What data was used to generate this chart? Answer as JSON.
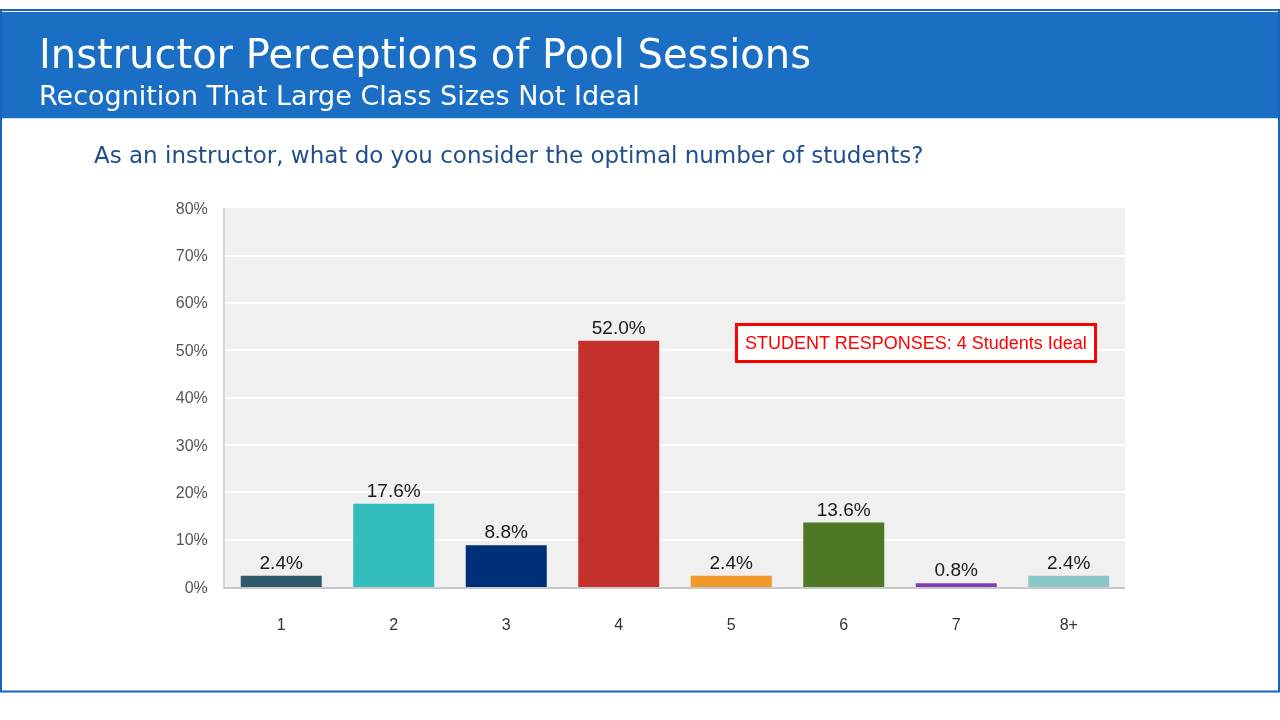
{
  "chart_data": {
    "type": "bar",
    "title": "Instructor Perceptions of Pool Sessions",
    "subtitle": "Recognition That Large Class Sizes Not Ideal",
    "annotations": [
      "As an instructor, what do you consider the optimal number of students?",
      "STUDENT RESPONSES: 4 Students Ideal"
    ],
    "categories": [
      "1",
      "2",
      "3",
      "4",
      "5",
      "6",
      "7",
      "8+"
    ],
    "values": [
      2.4,
      17.6,
      8.8,
      52.0,
      2.4,
      13.6,
      0.8,
      2.4
    ],
    "colors": [
      "#2f5a6b",
      "#33bdbd",
      "#002f7a",
      "#c4302b",
      "#f09a2a",
      "#4e7726",
      "#7e3fb0",
      "#8ac8c8"
    ],
    "value_labels": [
      "2.4%",
      "17.6%",
      "8.8%",
      "52.0%",
      "2.4%",
      "13.6%",
      "0.8%",
      "2.4%"
    ],
    "ylim": [
      0,
      80
    ],
    "yticks": [
      {
        "value": 0,
        "label": "0%"
      },
      {
        "value": 10,
        "label": "10%"
      },
      {
        "value": 20,
        "label": "20%"
      },
      {
        "value": 30,
        "label": "30%"
      },
      {
        "value": 40,
        "label": "40%"
      },
      {
        "value": 50,
        "label": "50%"
      },
      {
        "value": 60,
        "label": "60%"
      },
      {
        "value": 70,
        "label": "70%"
      },
      {
        "value": 80,
        "label": "80%"
      }
    ],
    "grid": "y"
  }
}
